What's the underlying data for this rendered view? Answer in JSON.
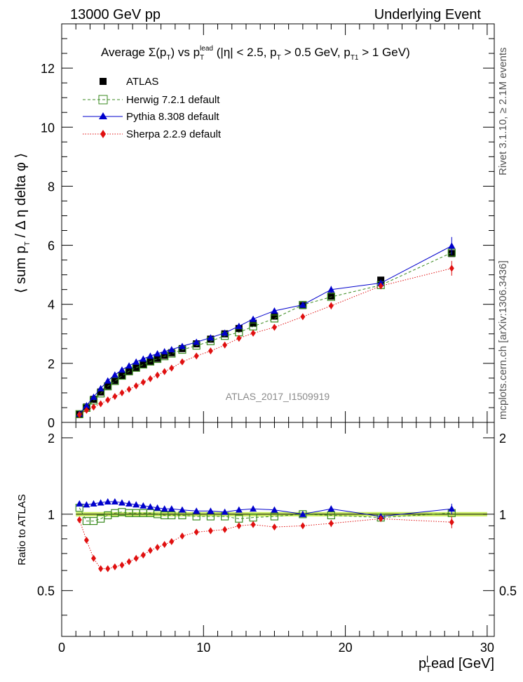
{
  "header": {
    "left": "13000 GeV pp",
    "right": "Underlying Event"
  },
  "side_labels": {
    "rivet": "Rivet 3.1.10, ≥ 2.1M events",
    "mcplots": "mcplots.cern.ch [arXiv:1306.3436]"
  },
  "colors": {
    "atlas": "#000000",
    "herwig": "#3a8a1f",
    "pythia": "#0000cc",
    "sherpa": "#e01010",
    "band": "#ccee66"
  },
  "chart_data": [
    {
      "type": "scatter",
      "title": "Average Σ(pT) vs pT^lead (|η| < 2.5, pT > 0.5 GeV, pT1 > 1 GeV)",
      "ylabel": "⟨ sum pT / Δ η delta φ ⟩",
      "watermark": "ATLAS_2017_I1509919",
      "xlim": [
        0,
        30.5
      ],
      "ylim": [
        0,
        13.5
      ],
      "yticks": [
        0,
        2,
        4,
        6,
        8,
        10,
        12
      ],
      "legend_position": "top-left",
      "x": [
        1.25,
        1.75,
        2.25,
        2.75,
        3.25,
        3.75,
        4.25,
        4.75,
        5.25,
        5.75,
        6.25,
        6.75,
        7.25,
        7.75,
        8.5,
        9.5,
        10.5,
        11.5,
        12.5,
        13.5,
        15.0,
        17.0,
        19.0,
        22.5,
        27.5
      ],
      "series": [
        {
          "name": "ATLAS",
          "marker": "square-filled",
          "values": [
            0.27,
            0.52,
            0.78,
            1.03,
            1.24,
            1.42,
            1.58,
            1.72,
            1.85,
            1.97,
            2.07,
            2.17,
            2.27,
            2.36,
            2.5,
            2.66,
            2.82,
            3.0,
            3.18,
            3.36,
            3.6,
            3.96,
            4.28,
            4.82,
            5.72
          ]
        },
        {
          "name": "Herwig 7.2.1 default",
          "marker": "square-open",
          "values": [
            0.28,
            0.49,
            0.74,
            0.98,
            1.22,
            1.4,
            1.58,
            1.73,
            1.85,
            1.96,
            2.06,
            2.15,
            2.24,
            2.33,
            2.46,
            2.6,
            2.75,
            2.93,
            3.05,
            3.25,
            3.52,
            3.98,
            4.25,
            4.65,
            5.75
          ]
        },
        {
          "name": "Pythia 8.308 default",
          "marker": "triangle-filled",
          "values": [
            0.29,
            0.57,
            0.86,
            1.15,
            1.41,
            1.61,
            1.78,
            1.92,
            2.05,
            2.15,
            2.25,
            2.33,
            2.4,
            2.47,
            2.58,
            2.72,
            2.87,
            3.03,
            3.26,
            3.5,
            3.78,
            3.98,
            4.5,
            4.72,
            5.98
          ],
          "errors": [
            0,
            0,
            0,
            0,
            0,
            0,
            0,
            0,
            0,
            0,
            0,
            0,
            0,
            0,
            0,
            0,
            0,
            0,
            0,
            0,
            0,
            0.03,
            0.12,
            0.06,
            0.3
          ]
        },
        {
          "name": "Sherpa 2.2.9 default",
          "marker": "diamond-filled",
          "values": [
            0.26,
            0.41,
            0.52,
            0.63,
            0.76,
            0.88,
            1.0,
            1.12,
            1.24,
            1.36,
            1.48,
            1.6,
            1.72,
            1.84,
            2.05,
            2.25,
            2.42,
            2.62,
            2.85,
            3.02,
            3.22,
            3.58,
            3.95,
            4.62,
            5.22
          ],
          "errors": [
            0,
            0,
            0,
            0,
            0,
            0,
            0,
            0,
            0,
            0,
            0,
            0,
            0,
            0,
            0,
            0,
            0,
            0,
            0,
            0,
            0,
            0.05,
            0.12,
            0.1,
            0.25
          ]
        }
      ]
    },
    {
      "type": "scatter",
      "ylabel": "Ratio to ATLAS",
      "xlabel": "p_T^lead [GeV]",
      "xlim": [
        0,
        30.5
      ],
      "xticks": [
        0,
        10,
        20,
        30
      ],
      "ylim": [
        0.33,
        2.3
      ],
      "yticks": [
        0.5,
        1,
        2
      ],
      "x": [
        1.25,
        1.75,
        2.25,
        2.75,
        3.25,
        3.75,
        4.25,
        4.75,
        5.25,
        5.75,
        6.25,
        6.75,
        7.25,
        7.75,
        8.5,
        9.5,
        10.5,
        11.5,
        12.5,
        13.5,
        15.0,
        17.0,
        19.0,
        22.5,
        27.5
      ],
      "reference_band": [
        0.98,
        1.02
      ],
      "series": [
        {
          "name": "Herwig 7.2.1 default",
          "marker": "square-open",
          "values": [
            1.06,
            0.94,
            0.94,
            0.96,
            0.99,
            1.01,
            1.02,
            1.01,
            1.01,
            1.01,
            1.01,
            1.0,
            0.99,
            0.99,
            0.99,
            0.98,
            0.98,
            0.98,
            0.96,
            0.97,
            0.98,
            1.0,
            0.99,
            0.97,
            1.01
          ]
        },
        {
          "name": "Pythia 8.308 default",
          "marker": "triangle-filled",
          "values": [
            1.1,
            1.09,
            1.1,
            1.11,
            1.12,
            1.12,
            1.11,
            1.1,
            1.09,
            1.08,
            1.07,
            1.06,
            1.05,
            1.05,
            1.04,
            1.03,
            1.03,
            1.02,
            1.04,
            1.05,
            1.04,
            1.0,
            1.05,
            0.98,
            1.05
          ],
          "errors": [
            0,
            0,
            0,
            0,
            0,
            0,
            0,
            0,
            0,
            0,
            0,
            0,
            0,
            0,
            0,
            0,
            0,
            0,
            0,
            0,
            0,
            0.01,
            0.03,
            0.01,
            0.05
          ]
        },
        {
          "name": "Sherpa 2.2.9 default",
          "marker": "diamond-filled",
          "values": [
            0.95,
            0.79,
            0.67,
            0.61,
            0.61,
            0.62,
            0.63,
            0.65,
            0.67,
            0.69,
            0.72,
            0.74,
            0.76,
            0.78,
            0.82,
            0.85,
            0.86,
            0.87,
            0.9,
            0.91,
            0.89,
            0.9,
            0.92,
            0.96,
            0.93
          ],
          "errors": [
            0,
            0,
            0,
            0,
            0,
            0,
            0,
            0,
            0,
            0,
            0,
            0,
            0,
            0,
            0,
            0,
            0,
            0,
            0,
            0,
            0,
            0.01,
            0.03,
            0.02,
            0.05
          ]
        }
      ]
    }
  ]
}
